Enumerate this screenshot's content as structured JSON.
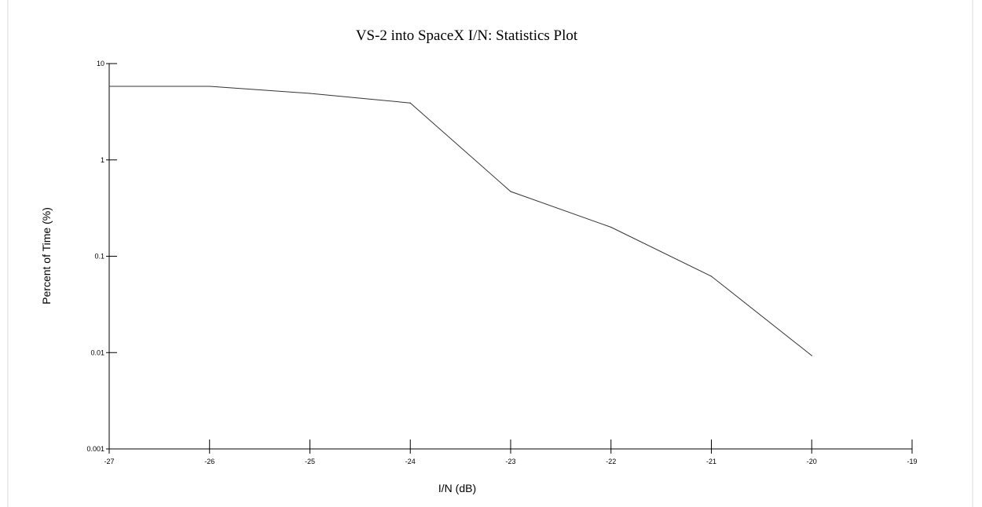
{
  "chart_data": {
    "type": "line",
    "title": "VS-2 into SpaceX I/N: Statistics Plot",
    "xlabel": "I/N (dB)",
    "ylabel": "Percent of Time (%)",
    "xlim": [
      -27,
      -19
    ],
    "ylim": [
      0.001,
      10
    ],
    "yscale": "log",
    "grid": false,
    "x_ticks": [
      "-27",
      "-26",
      "-25",
      "-24",
      "-23",
      "-22",
      "-21",
      "-20",
      "-19"
    ],
    "y_ticks": [
      "10",
      "1",
      "0.1",
      "0.01",
      "0.001"
    ],
    "series": [
      {
        "x": [
          -27,
          -26,
          -25,
          -24,
          -23,
          -22,
          -21,
          -20
        ],
        "values": [
          5.8,
          5.8,
          4.9,
          3.9,
          0.47,
          0.2,
          0.062,
          0.0093
        ],
        "color": "#333333"
      }
    ]
  }
}
